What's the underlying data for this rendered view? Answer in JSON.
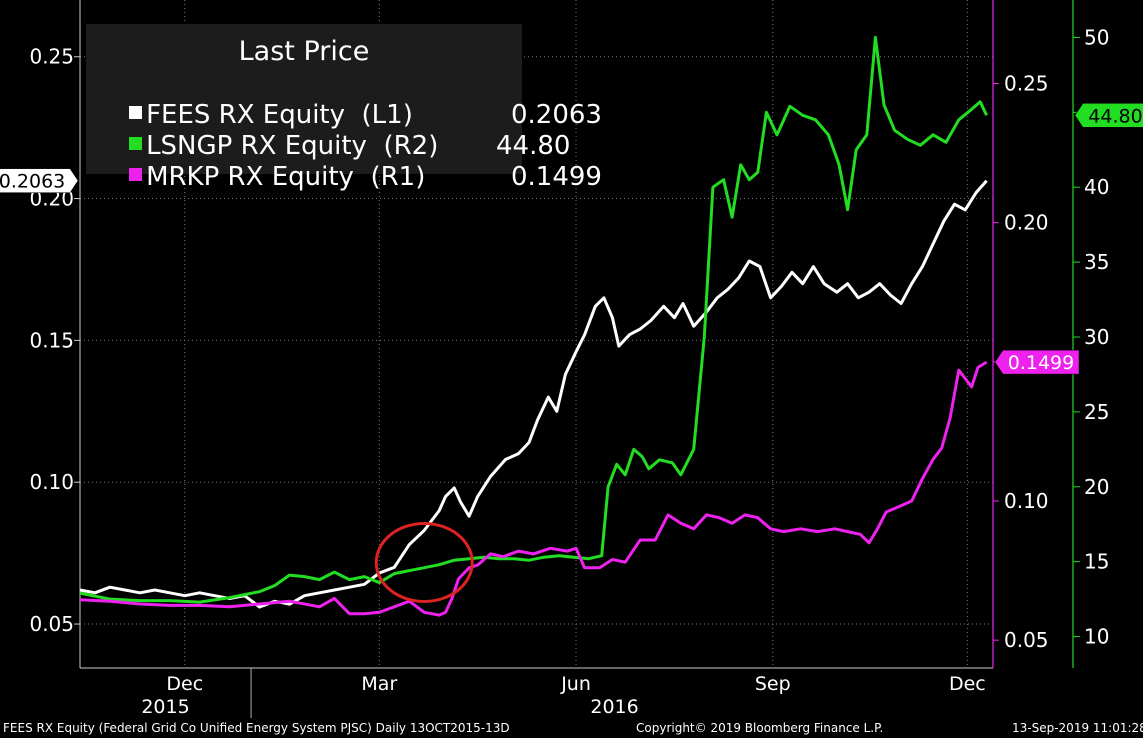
{
  "legend": {
    "title": "Last Price",
    "entries": [
      {
        "label": "FEES RX Equity  (L1)",
        "value": "0.2063",
        "color": "#ffffff"
      },
      {
        "label": "LSNGP RX Equity  (R2)",
        "value": "44.80",
        "color": "#22dd22"
      },
      {
        "label": "MRKP RX Equity  (R1)",
        "value": "0.1499",
        "color": "#ee22ee"
      }
    ]
  },
  "footer": {
    "left": "FEES RX Equity (Federal Grid Co Unified Energy System PJSC)  Daily 13OCT2015-13D",
    "center": "Copyright© 2019 Bloomberg Finance L.P.",
    "right": "13-Sep-2019 11:01:28"
  },
  "chart_data": {
    "type": "line",
    "x_start": "2015-10-13",
    "x_end": "2016-12-13",
    "x_month_ticks": [
      {
        "label": "Dec",
        "date": "2015-12-01"
      },
      {
        "label": "Mar",
        "date": "2016-03-01"
      },
      {
        "label": "Jun",
        "date": "2016-06-01"
      },
      {
        "label": "Sep",
        "date": "2016-09-01"
      },
      {
        "label": "Dec",
        "date": "2016-12-01"
      }
    ],
    "x_year_labels": [
      {
        "label": "2015",
        "date": "2015-11-22"
      },
      {
        "label": "2016",
        "date": "2016-06-19"
      }
    ],
    "year_separator_date": "2016-01-01",
    "axes": {
      "L1": {
        "range": [
          0.0345,
          0.27
        ],
        "ticks": [
          0.05,
          0.1,
          0.15,
          0.2,
          0.25
        ],
        "labels": [
          "0.05",
          "0.10",
          "0.15",
          "0.20",
          "0.25"
        ],
        "color": "#ffffff"
      },
      "R1": {
        "range": [
          0.04,
          0.28
        ],
        "ticks": [
          0.05,
          0.1,
          0.15,
          0.2,
          0.25
        ],
        "labels": [
          "0.05",
          "0.10",
          "0.15",
          "0.20",
          "0.25"
        ],
        "color": "#ee22ee"
      },
      "R2": {
        "range": [
          7.9,
          52.5
        ],
        "ticks": [
          10,
          15,
          20,
          25,
          30,
          35,
          40,
          45,
          50
        ],
        "labels": [
          "10",
          "15",
          "20",
          "25",
          "30",
          "35",
          "40",
          "45",
          "50"
        ],
        "color": "#22dd22"
      }
    },
    "grid": true,
    "series": [
      {
        "name": "FEES RX Equity (L1)",
        "axis": "L1",
        "color": "#ffffff",
        "last_label": "0.2063",
        "points": [
          [
            "2015-10-13",
            0.062
          ],
          [
            "2015-10-20",
            0.061
          ],
          [
            "2015-10-27",
            0.063
          ],
          [
            "2015-11-03",
            0.062
          ],
          [
            "2015-11-10",
            0.061
          ],
          [
            "2015-11-17",
            0.062
          ],
          [
            "2015-11-24",
            0.061
          ],
          [
            "2015-12-01",
            0.06
          ],
          [
            "2015-12-08",
            0.061
          ],
          [
            "2015-12-15",
            0.06
          ],
          [
            "2015-12-22",
            0.059
          ],
          [
            "2015-12-29",
            0.06
          ],
          [
            "2016-01-05",
            0.056
          ],
          [
            "2016-01-12",
            0.058
          ],
          [
            "2016-01-19",
            0.057
          ],
          [
            "2016-01-26",
            0.06
          ],
          [
            "2016-02-02",
            0.061
          ],
          [
            "2016-02-09",
            0.062
          ],
          [
            "2016-02-16",
            0.063
          ],
          [
            "2016-02-23",
            0.064
          ],
          [
            "2016-03-01",
            0.068
          ],
          [
            "2016-03-08",
            0.07
          ],
          [
            "2016-03-15",
            0.078
          ],
          [
            "2016-03-22",
            0.083
          ],
          [
            "2016-03-29",
            0.09
          ],
          [
            "2016-04-01",
            0.095
          ],
          [
            "2016-04-05",
            0.098
          ],
          [
            "2016-04-08",
            0.093
          ],
          [
            "2016-04-12",
            0.088
          ],
          [
            "2016-04-16",
            0.095
          ],
          [
            "2016-04-22",
            0.102
          ],
          [
            "2016-04-29",
            0.108
          ],
          [
            "2016-05-05",
            0.11
          ],
          [
            "2016-05-10",
            0.114
          ],
          [
            "2016-05-14",
            0.122
          ],
          [
            "2016-05-19",
            0.13
          ],
          [
            "2016-05-23",
            0.125
          ],
          [
            "2016-05-27",
            0.138
          ],
          [
            "2016-06-01",
            0.146
          ],
          [
            "2016-06-05",
            0.152
          ],
          [
            "2016-06-10",
            0.162
          ],
          [
            "2016-06-14",
            0.165
          ],
          [
            "2016-06-18",
            0.158
          ],
          [
            "2016-06-21",
            0.148
          ],
          [
            "2016-06-26",
            0.152
          ],
          [
            "2016-07-01",
            0.154
          ],
          [
            "2016-07-06",
            0.157
          ],
          [
            "2016-07-12",
            0.162
          ],
          [
            "2016-07-17",
            0.158
          ],
          [
            "2016-07-21",
            0.163
          ],
          [
            "2016-07-26",
            0.155
          ],
          [
            "2016-08-01",
            0.16
          ],
          [
            "2016-08-06",
            0.165
          ],
          [
            "2016-08-11",
            0.168
          ],
          [
            "2016-08-16",
            0.172
          ],
          [
            "2016-08-21",
            0.178
          ],
          [
            "2016-08-26",
            0.176
          ],
          [
            "2016-08-31",
            0.165
          ],
          [
            "2016-09-05",
            0.169
          ],
          [
            "2016-09-10",
            0.174
          ],
          [
            "2016-09-15",
            0.17
          ],
          [
            "2016-09-20",
            0.176
          ],
          [
            "2016-09-25",
            0.17
          ],
          [
            "2016-10-01",
            0.167
          ],
          [
            "2016-10-06",
            0.17
          ],
          [
            "2016-10-11",
            0.165
          ],
          [
            "2016-10-16",
            0.167
          ],
          [
            "2016-10-21",
            0.17
          ],
          [
            "2016-10-26",
            0.166
          ],
          [
            "2016-10-31",
            0.163
          ],
          [
            "2016-11-05",
            0.17
          ],
          [
            "2016-11-10",
            0.176
          ],
          [
            "2016-11-15",
            0.184
          ],
          [
            "2016-11-20",
            0.192
          ],
          [
            "2016-11-25",
            0.198
          ],
          [
            "2016-11-30",
            0.196
          ],
          [
            "2016-12-05",
            0.202
          ],
          [
            "2016-12-10",
            0.2063
          ]
        ]
      },
      {
        "name": "LSNGP RX Equity (R2)",
        "axis": "R2",
        "color": "#22dd22",
        "last_label": "44.80",
        "points": [
          [
            "2015-10-13",
            12.9
          ],
          [
            "2015-10-27",
            12.5
          ],
          [
            "2015-11-10",
            12.4
          ],
          [
            "2015-11-24",
            12.4
          ],
          [
            "2015-12-08",
            12.3
          ],
          [
            "2015-12-22",
            12.6
          ],
          [
            "2016-01-05",
            13.0
          ],
          [
            "2016-01-12",
            13.4
          ],
          [
            "2016-01-19",
            14.1
          ],
          [
            "2016-01-26",
            14.0
          ],
          [
            "2016-02-02",
            13.8
          ],
          [
            "2016-02-09",
            14.3
          ],
          [
            "2016-02-16",
            13.8
          ],
          [
            "2016-02-23",
            14.0
          ],
          [
            "2016-03-01",
            13.6
          ],
          [
            "2016-03-08",
            14.2
          ],
          [
            "2016-03-15",
            14.4
          ],
          [
            "2016-03-22",
            14.6
          ],
          [
            "2016-03-29",
            14.8
          ],
          [
            "2016-04-05",
            15.1
          ],
          [
            "2016-04-12",
            15.2
          ],
          [
            "2016-04-19",
            15.3
          ],
          [
            "2016-04-26",
            15.2
          ],
          [
            "2016-05-03",
            15.2
          ],
          [
            "2016-05-10",
            15.1
          ],
          [
            "2016-05-17",
            15.3
          ],
          [
            "2016-05-24",
            15.4
          ],
          [
            "2016-05-31",
            15.3
          ],
          [
            "2016-06-07",
            15.2
          ],
          [
            "2016-06-13",
            15.4
          ],
          [
            "2016-06-16",
            20.0
          ],
          [
            "2016-06-20",
            21.5
          ],
          [
            "2016-06-24",
            20.8
          ],
          [
            "2016-06-28",
            22.5
          ],
          [
            "2016-07-02",
            22.0
          ],
          [
            "2016-07-05",
            21.2
          ],
          [
            "2016-07-10",
            21.8
          ],
          [
            "2016-07-16",
            21.6
          ],
          [
            "2016-07-20",
            20.8
          ],
          [
            "2016-07-26",
            22.5
          ],
          [
            "2016-07-31",
            30.0
          ],
          [
            "2016-08-04",
            40.0
          ],
          [
            "2016-08-09",
            40.5
          ],
          [
            "2016-08-13",
            38.0
          ],
          [
            "2016-08-17",
            41.5
          ],
          [
            "2016-08-21",
            40.5
          ],
          [
            "2016-08-25",
            41.0
          ],
          [
            "2016-08-29",
            45.0
          ],
          [
            "2016-09-03",
            43.5
          ],
          [
            "2016-09-09",
            45.4
          ],
          [
            "2016-09-15",
            44.8
          ],
          [
            "2016-09-21",
            44.5
          ],
          [
            "2016-09-27",
            43.5
          ],
          [
            "2016-10-02",
            41.5
          ],
          [
            "2016-10-06",
            38.5
          ],
          [
            "2016-10-10",
            42.5
          ],
          [
            "2016-10-15",
            43.5
          ],
          [
            "2016-10-19",
            50.0
          ],
          [
            "2016-10-23",
            45.5
          ],
          [
            "2016-10-28",
            43.8
          ],
          [
            "2016-11-03",
            43.2
          ],
          [
            "2016-11-09",
            42.8
          ],
          [
            "2016-11-15",
            43.5
          ],
          [
            "2016-11-21",
            43.0
          ],
          [
            "2016-11-27",
            44.5
          ],
          [
            "2016-12-03",
            45.2
          ],
          [
            "2016-12-07",
            45.7
          ],
          [
            "2016-12-10",
            44.8
          ]
        ]
      },
      {
        "name": "MRKP RX Equity (R1)",
        "axis": "R1",
        "color": "#ee22ee",
        "last_label": "0.1499",
        "points": [
          [
            "2015-10-13",
            0.0645
          ],
          [
            "2015-10-27",
            0.064
          ],
          [
            "2015-11-10",
            0.063
          ],
          [
            "2015-11-24",
            0.0625
          ],
          [
            "2015-12-08",
            0.0625
          ],
          [
            "2015-12-22",
            0.062
          ],
          [
            "2016-01-05",
            0.063
          ],
          [
            "2016-01-19",
            0.064
          ],
          [
            "2016-02-02",
            0.062
          ],
          [
            "2016-02-09",
            0.065
          ],
          [
            "2016-02-16",
            0.0595
          ],
          [
            "2016-02-23",
            0.0595
          ],
          [
            "2016-03-01",
            0.06
          ],
          [
            "2016-03-08",
            0.062
          ],
          [
            "2016-03-15",
            0.064
          ],
          [
            "2016-03-22",
            0.06
          ],
          [
            "2016-03-29",
            0.059
          ],
          [
            "2016-04-01",
            0.06
          ],
          [
            "2016-04-04",
            0.065
          ],
          [
            "2016-04-07",
            0.072
          ],
          [
            "2016-04-12",
            0.076
          ],
          [
            "2016-04-16",
            0.077
          ],
          [
            "2016-04-22",
            0.081
          ],
          [
            "2016-04-28",
            0.08
          ],
          [
            "2016-05-05",
            0.082
          ],
          [
            "2016-05-12",
            0.081
          ],
          [
            "2016-05-20",
            0.083
          ],
          [
            "2016-05-28",
            0.082
          ],
          [
            "2016-06-01",
            0.083
          ],
          [
            "2016-06-05",
            0.076
          ],
          [
            "2016-06-12",
            0.076
          ],
          [
            "2016-06-18",
            0.079
          ],
          [
            "2016-06-24",
            0.078
          ],
          [
            "2016-07-01",
            0.086
          ],
          [
            "2016-07-08",
            0.086
          ],
          [
            "2016-07-14",
            0.095
          ],
          [
            "2016-07-20",
            0.092
          ],
          [
            "2016-07-26",
            0.09
          ],
          [
            "2016-08-01",
            0.095
          ],
          [
            "2016-08-07",
            0.094
          ],
          [
            "2016-08-13",
            0.092
          ],
          [
            "2016-08-19",
            0.095
          ],
          [
            "2016-08-25",
            0.094
          ],
          [
            "2016-08-31",
            0.09
          ],
          [
            "2016-09-06",
            0.089
          ],
          [
            "2016-09-14",
            0.09
          ],
          [
            "2016-09-22",
            0.089
          ],
          [
            "2016-09-30",
            0.09
          ],
          [
            "2016-10-06",
            0.089
          ],
          [
            "2016-10-12",
            0.088
          ],
          [
            "2016-10-16",
            0.085
          ],
          [
            "2016-10-20",
            0.09
          ],
          [
            "2016-10-24",
            0.096
          ],
          [
            "2016-10-30",
            0.098
          ],
          [
            "2016-11-05",
            0.1
          ],
          [
            "2016-11-10",
            0.108
          ],
          [
            "2016-11-15",
            0.115
          ],
          [
            "2016-11-19",
            0.119
          ],
          [
            "2016-11-23",
            0.13
          ],
          [
            "2016-11-27",
            0.147
          ],
          [
            "2016-11-30",
            0.144
          ],
          [
            "2016-12-03",
            0.141
          ],
          [
            "2016-12-06",
            0.148
          ],
          [
            "2016-12-10",
            0.1499
          ]
        ]
      }
    ],
    "annotation": {
      "shape": "ellipse",
      "color": "#dd2222",
      "center_date": "2016-03-22",
      "center_value_L1": 0.0717
    }
  }
}
